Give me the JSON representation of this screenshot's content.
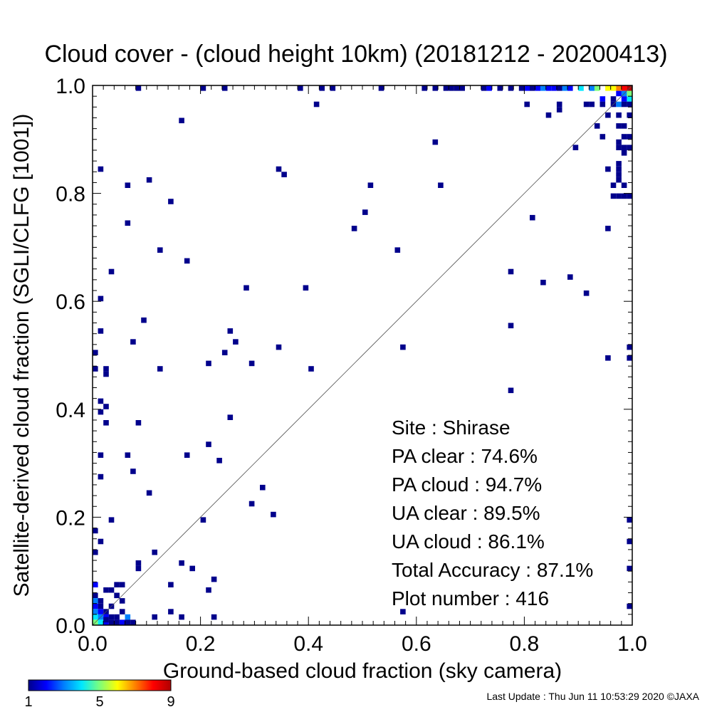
{
  "chart_data": {
    "type": "heatmap",
    "title": "Cloud cover - (cloud height 10km)  (20181212 - 20200413)",
    "xlabel": "Ground-based cloud fraction (sky camera)",
    "ylabel": "Satellite-derived cloud fraction (SGLI/CLFG [1001])",
    "xlim": [
      0,
      1
    ],
    "ylim": [
      0,
      1
    ],
    "x_ticks": [
      "0.0",
      "0.2",
      "0.4",
      "0.6",
      "0.8",
      "1.0"
    ],
    "y_ticks": [
      "0.0",
      "0.2",
      "0.4",
      "0.6",
      "0.8",
      "1.0"
    ],
    "bin_size": 0.01,
    "grid": false,
    "reference_line": "1:1 diagonal",
    "colorbar": {
      "ticks": [
        "1",
        "5",
        "9"
      ],
      "min": 1,
      "max": 9,
      "colors": [
        "#00008c",
        "#0000ff",
        "#0080ff",
        "#00e8ff",
        "#7dff7a",
        "#ffff00",
        "#ff8000",
        "#ff0000",
        "#b00000"
      ]
    },
    "stats": [
      "Site : Shirase",
      "PA clear :  74.6%",
      "PA cloud :  94.7%",
      "UA clear :  89.5%",
      "UA cloud :  86.1%",
      "Total Accuracy :  87.1%",
      "Plot number :       416"
    ],
    "cells": [
      [
        0.08,
        0.995,
        1
      ],
      [
        0.2,
        0.995,
        1
      ],
      [
        0.24,
        0.995,
        1
      ],
      [
        0.38,
        0.995,
        1
      ],
      [
        0.42,
        0.995,
        1
      ],
      [
        0.44,
        0.995,
        1
      ],
      [
        0.53,
        0.995,
        1
      ],
      [
        0.61,
        0.995,
        1
      ],
      [
        0.63,
        0.995,
        1
      ],
      [
        0.65,
        0.995,
        1
      ],
      [
        0.66,
        0.995,
        1
      ],
      [
        0.67,
        0.995,
        1
      ],
      [
        0.68,
        0.995,
        1
      ],
      [
        0.72,
        0.995,
        1
      ],
      [
        0.73,
        0.995,
        2
      ],
      [
        0.75,
        0.995,
        1
      ],
      [
        0.77,
        0.995,
        1
      ],
      [
        0.79,
        0.995,
        1
      ],
      [
        0.8,
        0.995,
        2
      ],
      [
        0.81,
        0.995,
        1
      ],
      [
        0.82,
        0.995,
        2
      ],
      [
        0.83,
        0.995,
        3
      ],
      [
        0.84,
        0.995,
        2
      ],
      [
        0.85,
        0.995,
        2
      ],
      [
        0.86,
        0.995,
        1
      ],
      [
        0.87,
        0.995,
        3
      ],
      [
        0.88,
        0.995,
        2
      ],
      [
        0.9,
        0.995,
        4
      ],
      [
        0.92,
        0.995,
        3
      ],
      [
        0.93,
        0.995,
        5
      ],
      [
        0.95,
        0.995,
        6
      ],
      [
        0.96,
        0.995,
        6
      ],
      [
        0.97,
        0.995,
        7
      ],
      [
        0.98,
        0.995,
        8
      ],
      [
        0.99,
        0.995,
        9
      ],
      [
        0.97,
        0.985,
        2
      ],
      [
        0.98,
        0.985,
        3
      ],
      [
        0.99,
        0.985,
        5
      ],
      [
        0.99,
        0.975,
        4
      ],
      [
        0.98,
        0.975,
        2
      ],
      [
        0.96,
        0.975,
        1
      ],
      [
        0.94,
        0.975,
        2
      ],
      [
        0.41,
        0.965,
        1
      ],
      [
        0.8,
        0.965,
        1
      ],
      [
        0.86,
        0.965,
        1
      ],
      [
        0.91,
        0.965,
        1
      ],
      [
        0.92,
        0.965,
        1
      ],
      [
        0.94,
        0.965,
        1
      ],
      [
        0.96,
        0.965,
        1
      ],
      [
        0.97,
        0.965,
        3
      ],
      [
        0.98,
        0.965,
        1
      ],
      [
        0.99,
        0.965,
        1
      ],
      [
        0.86,
        0.955,
        1
      ],
      [
        0.84,
        0.945,
        1
      ],
      [
        0.95,
        0.945,
        1
      ],
      [
        0.97,
        0.945,
        1
      ],
      [
        0.99,
        0.945,
        1
      ],
      [
        0.16,
        0.935,
        1
      ],
      [
        0.93,
        0.925,
        1
      ],
      [
        0.97,
        0.925,
        1
      ],
      [
        0.98,
        0.925,
        1
      ],
      [
        0.94,
        0.905,
        1
      ],
      [
        0.98,
        0.905,
        1
      ],
      [
        0.99,
        0.905,
        1
      ],
      [
        0.63,
        0.895,
        1
      ],
      [
        0.97,
        0.895,
        1
      ],
      [
        0.89,
        0.885,
        1
      ],
      [
        0.97,
        0.885,
        1
      ],
      [
        0.98,
        0.885,
        1
      ],
      [
        0.99,
        0.885,
        1
      ],
      [
        0.98,
        0.875,
        1
      ],
      [
        0.97,
        0.855,
        1
      ],
      [
        0.01,
        0.845,
        1
      ],
      [
        0.34,
        0.845,
        1
      ],
      [
        0.95,
        0.845,
        1
      ],
      [
        0.97,
        0.845,
        1
      ],
      [
        0.35,
        0.835,
        1
      ],
      [
        0.97,
        0.835,
        1
      ],
      [
        0.1,
        0.825,
        1
      ],
      [
        0.97,
        0.825,
        1
      ],
      [
        0.06,
        0.815,
        1
      ],
      [
        0.51,
        0.815,
        1
      ],
      [
        0.64,
        0.815,
        1
      ],
      [
        0.96,
        0.815,
        1
      ],
      [
        0.98,
        0.815,
        1
      ],
      [
        0.96,
        0.795,
        1
      ],
      [
        0.98,
        0.795,
        1
      ],
      [
        0.99,
        0.795,
        1
      ],
      [
        0.97,
        0.795,
        1
      ],
      [
        0.14,
        0.785,
        1
      ],
      [
        0.5,
        0.765,
        1
      ],
      [
        0.81,
        0.755,
        1
      ],
      [
        0.06,
        0.745,
        1
      ],
      [
        0.48,
        0.735,
        1
      ],
      [
        0.95,
        0.735,
        1
      ],
      [
        0.12,
        0.695,
        1
      ],
      [
        0.56,
        0.695,
        1
      ],
      [
        0.17,
        0.675,
        1
      ],
      [
        0.03,
        0.655,
        1
      ],
      [
        0.77,
        0.655,
        1
      ],
      [
        0.88,
        0.645,
        1
      ],
      [
        0.83,
        0.635,
        1
      ],
      [
        0.28,
        0.625,
        1
      ],
      [
        0.39,
        0.625,
        1
      ],
      [
        0.91,
        0.615,
        1
      ],
      [
        0.01,
        0.605,
        1
      ],
      [
        0.09,
        0.565,
        1
      ],
      [
        0.77,
        0.555,
        1
      ],
      [
        0.01,
        0.545,
        1
      ],
      [
        0.25,
        0.545,
        1
      ],
      [
        0.07,
        0.525,
        1
      ],
      [
        0.26,
        0.525,
        1
      ],
      [
        0.34,
        0.515,
        1
      ],
      [
        0.57,
        0.515,
        1
      ],
      [
        0.99,
        0.515,
        1
      ],
      [
        0.24,
        0.505,
        1
      ],
      [
        0.0,
        0.505,
        1
      ],
      [
        0.95,
        0.495,
        1
      ],
      [
        0.99,
        0.495,
        1
      ],
      [
        0.21,
        0.485,
        1
      ],
      [
        0.29,
        0.485,
        1
      ],
      [
        0.0,
        0.475,
        1
      ],
      [
        0.02,
        0.475,
        1
      ],
      [
        0.12,
        0.475,
        1
      ],
      [
        0.4,
        0.475,
        1
      ],
      [
        0.02,
        0.465,
        1
      ],
      [
        0.77,
        0.435,
        1
      ],
      [
        0.01,
        0.415,
        1
      ],
      [
        0.02,
        0.405,
        1
      ],
      [
        0.01,
        0.395,
        1
      ],
      [
        0.25,
        0.385,
        1
      ],
      [
        0.02,
        0.375,
        1
      ],
      [
        0.08,
        0.375,
        1
      ],
      [
        0.21,
        0.335,
        1
      ],
      [
        0.01,
        0.315,
        1
      ],
      [
        0.06,
        0.315,
        1
      ],
      [
        0.17,
        0.315,
        1
      ],
      [
        0.23,
        0.305,
        1
      ],
      [
        0.07,
        0.285,
        1
      ],
      [
        0.01,
        0.275,
        1
      ],
      [
        0.31,
        0.255,
        1
      ],
      [
        0.1,
        0.245,
        1
      ],
      [
        0.29,
        0.225,
        1
      ],
      [
        0.33,
        0.205,
        1
      ],
      [
        0.03,
        0.195,
        1
      ],
      [
        0.2,
        0.195,
        1
      ],
      [
        0.99,
        0.195,
        1
      ],
      [
        0.0,
        0.175,
        1
      ],
      [
        0.01,
        0.155,
        1
      ],
      [
        0.99,
        0.155,
        1
      ],
      [
        0.0,
        0.135,
        1
      ],
      [
        0.11,
        0.135,
        1
      ],
      [
        0.08,
        0.115,
        1
      ],
      [
        0.16,
        0.115,
        1
      ],
      [
        0.18,
        0.105,
        1
      ],
      [
        0.99,
        0.105,
        1
      ],
      [
        0.08,
        0.105,
        1
      ],
      [
        0.22,
        0.085,
        1
      ],
      [
        0.0,
        0.075,
        2
      ],
      [
        0.05,
        0.075,
        1
      ],
      [
        0.14,
        0.075,
        1
      ],
      [
        0.03,
        0.065,
        1
      ],
      [
        0.04,
        0.075,
        1
      ],
      [
        0.21,
        0.065,
        1
      ],
      [
        0.02,
        0.065,
        1
      ],
      [
        0.0,
        0.055,
        1
      ],
      [
        0.04,
        0.055,
        1
      ],
      [
        0.0,
        0.045,
        3
      ],
      [
        0.01,
        0.045,
        1
      ],
      [
        0.05,
        0.045,
        1
      ],
      [
        0.0,
        0.035,
        2
      ],
      [
        0.01,
        0.035,
        1
      ],
      [
        0.99,
        0.035,
        1
      ],
      [
        0.03,
        0.035,
        1
      ],
      [
        0.14,
        0.025,
        1
      ],
      [
        0.57,
        0.025,
        1
      ],
      [
        0.0,
        0.025,
        3
      ],
      [
        0.01,
        0.025,
        2
      ],
      [
        0.02,
        0.025,
        1
      ],
      [
        0.05,
        0.025,
        1
      ],
      [
        0.0,
        0.015,
        4
      ],
      [
        0.01,
        0.015,
        3
      ],
      [
        0.02,
        0.015,
        2
      ],
      [
        0.03,
        0.015,
        1
      ],
      [
        0.04,
        0.015,
        1
      ],
      [
        0.06,
        0.015,
        3
      ],
      [
        0.11,
        0.015,
        1
      ],
      [
        0.16,
        0.015,
        1
      ],
      [
        0.22,
        0.015,
        1
      ],
      [
        0.0,
        0.005,
        5
      ],
      [
        0.01,
        0.005,
        4
      ],
      [
        0.02,
        0.005,
        2
      ],
      [
        0.03,
        0.005,
        1
      ],
      [
        0.04,
        0.005,
        1
      ],
      [
        0.05,
        0.005,
        2
      ],
      [
        0.06,
        0.005,
        1
      ],
      [
        0.07,
        0.005,
        1
      ],
      [
        0.02,
        0.01,
        1
      ]
    ]
  },
  "footer": "Last Update : Thu Jun 11 10:53:29 2020  ©JAXA"
}
